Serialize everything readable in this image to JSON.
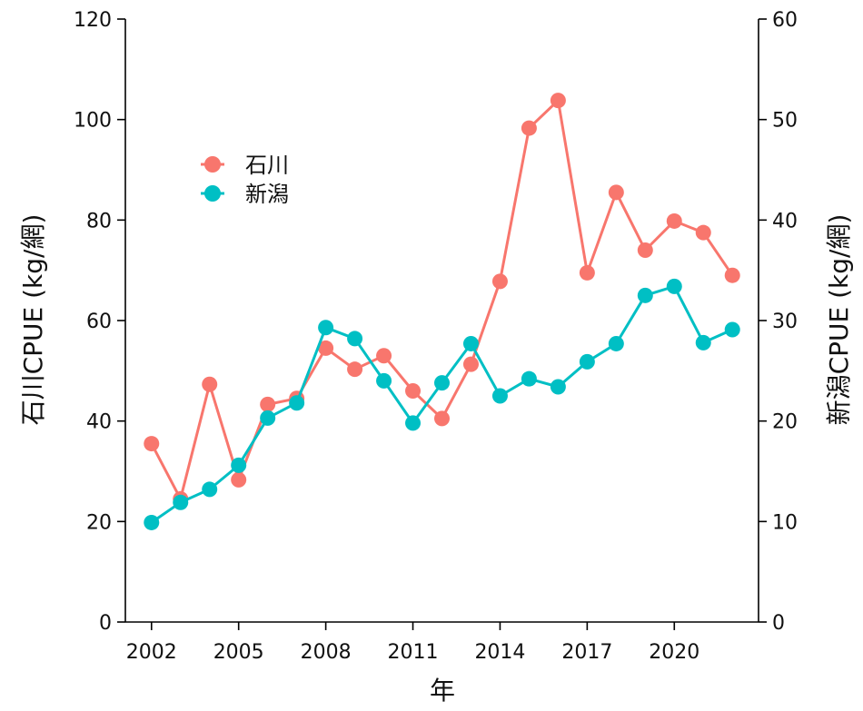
{
  "chart_data": {
    "type": "line",
    "xlabel": "年",
    "ylabel_left": "石川CPUE (kg/網)",
    "ylabel_right": "新潟CPUE (kg/網)",
    "x_ticks": [
      2002,
      2005,
      2008,
      2011,
      2014,
      2017,
      2020
    ],
    "y_left_ticks": [
      0,
      20,
      40,
      60,
      80,
      100,
      120
    ],
    "y_right_ticks": [
      0,
      10,
      20,
      30,
      40,
      50,
      60
    ],
    "xlim": [
      2001.1,
      2022.9
    ],
    "ylim_left": [
      0,
      120
    ],
    "ylim_right": [
      0,
      60
    ],
    "legend_position": "top-left",
    "grid": false,
    "series": [
      {
        "name": "石川",
        "axis": "left",
        "color": "#F8766D",
        "x": [
          2002,
          2003,
          2004,
          2005,
          2006,
          2007,
          2008,
          2009,
          2010,
          2011,
          2012,
          2013,
          2014,
          2015,
          2016,
          2017,
          2018,
          2019,
          2020,
          2021,
          2022
        ],
        "y": [
          35.5,
          24.5,
          47.3,
          28.3,
          43.3,
          44.5,
          54.5,
          50.3,
          53.0,
          46.0,
          40.5,
          51.3,
          67.8,
          98.3,
          103.8,
          69.5,
          85.5,
          74.0,
          79.8,
          77.5,
          69.0
        ]
      },
      {
        "name": "新潟",
        "axis": "right",
        "color": "#00BFC4",
        "x": [
          2002,
          2003,
          2004,
          2005,
          2006,
          2007,
          2008,
          2009,
          2010,
          2011,
          2012,
          2013,
          2014,
          2015,
          2016,
          2017,
          2018,
          2019,
          2020,
          2021,
          2022
        ],
        "y": [
          9.9,
          11.9,
          13.2,
          15.6,
          20.3,
          21.8,
          29.3,
          28.2,
          24.0,
          19.8,
          23.8,
          27.7,
          22.5,
          24.2,
          23.4,
          25.9,
          27.7,
          32.5,
          33.4,
          27.8,
          29.1
        ]
      }
    ]
  }
}
